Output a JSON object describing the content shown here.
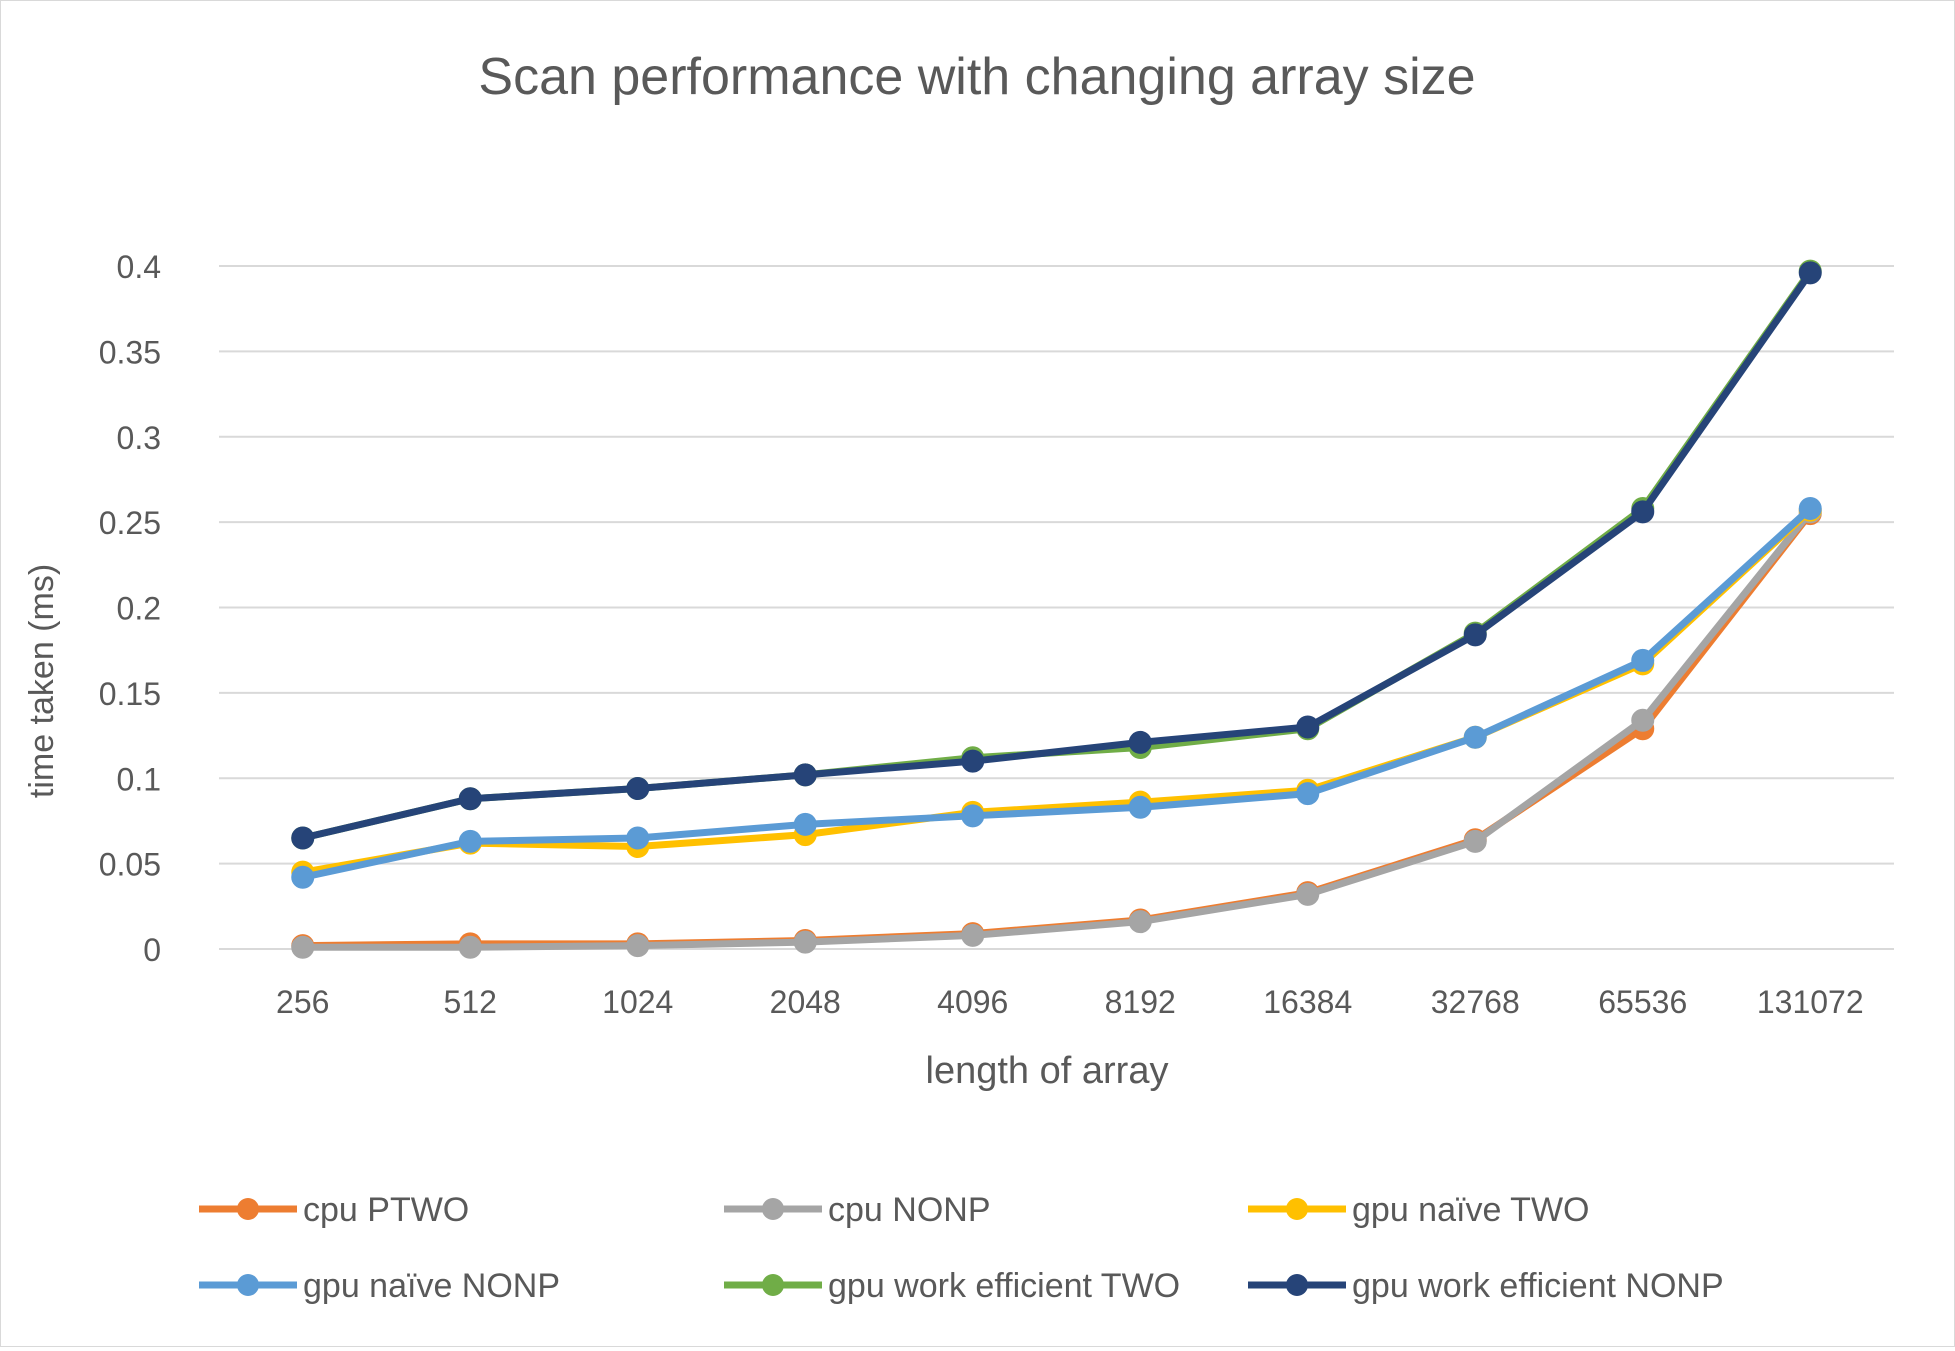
{
  "chart_data": {
    "type": "line",
    "title": "Scan performance with changing array size",
    "xlabel": "length of array",
    "ylabel": "time taken (ms)",
    "categories": [
      "256",
      "512",
      "1024",
      "2048",
      "4096",
      "8192",
      "16384",
      "32768",
      "65536",
      "131072"
    ],
    "ylim": [
      0,
      0.4
    ],
    "yticks": [
      "0",
      "0.05",
      "0.1",
      "0.15",
      "0.2",
      "0.25",
      "0.3",
      "0.35",
      "0.4"
    ],
    "grid": true,
    "legend": "bottom",
    "series": [
      {
        "name": "cpu PTWO",
        "color": "#ED7D31",
        "values": [
          0.002,
          0.003,
          0.003,
          0.005,
          0.009,
          0.017,
          0.033,
          0.064,
          0.129,
          0.255
        ]
      },
      {
        "name": "cpu NONP",
        "color": "#A5A5A5",
        "values": [
          0.001,
          0.001,
          0.002,
          0.004,
          0.008,
          0.016,
          0.032,
          0.063,
          0.134,
          0.256
        ]
      },
      {
        "name": "gpu naïve TWO",
        "color": "#FFC000",
        "values": [
          0.045,
          0.062,
          0.06,
          0.067,
          0.08,
          0.086,
          0.093,
          0.124,
          0.167,
          0.257
        ]
      },
      {
        "name": "gpu naïve NONP",
        "color": "#5B9BD5",
        "values": [
          0.042,
          0.063,
          0.065,
          0.073,
          0.078,
          0.083,
          0.091,
          0.124,
          0.169,
          0.258
        ]
      },
      {
        "name": "gpu work efficient TWO",
        "color": "#70AD47",
        "values": [
          0.065,
          0.088,
          0.094,
          0.102,
          0.112,
          0.118,
          0.129,
          0.185,
          0.258,
          0.397
        ]
      },
      {
        "name": "gpu work efficient NONP",
        "color": "#264478",
        "values": [
          0.065,
          0.088,
          0.094,
          0.102,
          0.11,
          0.121,
          0.13,
          0.184,
          0.256,
          0.396
        ]
      }
    ]
  }
}
